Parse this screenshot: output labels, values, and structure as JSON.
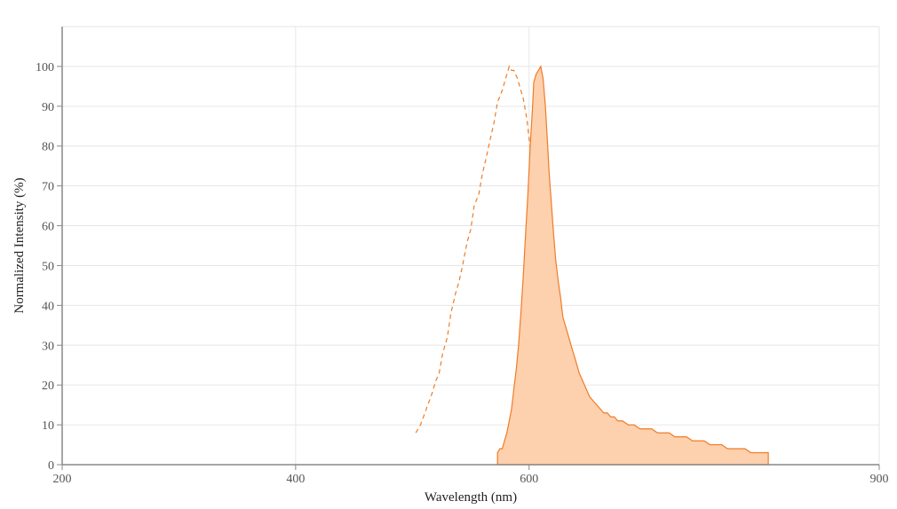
{
  "chart_data": {
    "type": "area",
    "title": "",
    "xlabel": "Wavelength (nm)",
    "ylabel": "Normalized Intensity (%)",
    "xlim": [
      200,
      900
    ],
    "ylim": [
      0,
      110
    ],
    "x_ticks": [
      200,
      400,
      600,
      900
    ],
    "y_ticks": [
      0,
      10,
      20,
      30,
      40,
      50,
      60,
      70,
      80,
      90,
      100
    ],
    "grid": true,
    "legend": "none",
    "colors": {
      "line": "#f07c27",
      "fill": "#fdd0ae",
      "axis": "#888888",
      "grid": "#e6e6e6"
    },
    "series": [
      {
        "style": "dashed",
        "filled": false,
        "x": [
          503,
          507,
          512,
          517,
          520,
          523,
          526,
          530,
          533,
          537,
          540,
          543,
          547,
          550,
          553,
          557,
          560,
          564,
          567,
          570,
          573,
          577,
          580,
          583,
          585,
          587,
          590,
          592,
          595,
          598,
          600,
          602,
          605,
          608,
          610,
          612,
          614,
          616,
          617,
          618,
          620,
          623,
          624,
          624.5
        ],
        "y": [
          8,
          10,
          14,
          18,
          21,
          23,
          28,
          32,
          38,
          43,
          46,
          50,
          56,
          59,
          65,
          68,
          73,
          78,
          82,
          86,
          91,
          94,
          97,
          100,
          99,
          99,
          97,
          95,
          92,
          87,
          82,
          77,
          72,
          66,
          61,
          56,
          54,
          53,
          52,
          50,
          48,
          41,
          30,
          0
        ]
      },
      {
        "style": "solid",
        "filled": true,
        "x": [
          573,
          575,
          577,
          579,
          581,
          583,
          585,
          587,
          589,
          591,
          593,
          595,
          597,
          599,
          601,
          603,
          604,
          606,
          608,
          610,
          612,
          614,
          616,
          617,
          619,
          621,
          623,
          625,
          627,
          629,
          631,
          633,
          635,
          637,
          639,
          641,
          643,
          646,
          649,
          652,
          655,
          658,
          661,
          664,
          667,
          670,
          673,
          676,
          680,
          685,
          690,
          695,
          700,
          705,
          710,
          715,
          720,
          725,
          730,
          735,
          740,
          745,
          750,
          755,
          760,
          765,
          770,
          775,
          780,
          785,
          790,
          795,
          800,
          805
        ],
        "y": [
          3,
          4,
          4,
          6,
          8,
          11,
          14,
          19,
          24,
          30,
          38,
          47,
          58,
          68,
          80,
          90,
          96,
          98,
          99,
          100,
          97,
          90,
          80,
          74,
          66,
          58,
          51,
          46,
          42,
          37,
          35,
          33,
          31,
          29,
          27,
          25,
          23,
          21,
          19,
          17,
          16,
          15,
          14,
          13,
          13,
          12,
          12,
          11,
          11,
          10,
          10,
          9,
          9,
          9,
          8,
          8,
          8,
          7,
          7,
          7,
          6,
          6,
          6,
          5,
          5,
          5,
          4,
          4,
          4,
          4,
          3,
          3,
          3,
          3
        ]
      }
    ]
  }
}
